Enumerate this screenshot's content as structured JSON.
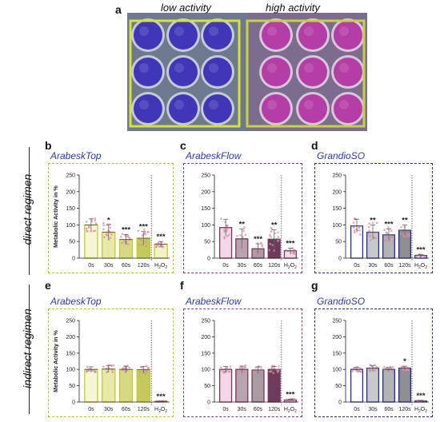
{
  "figure": {
    "panel_letters": [
      "a",
      "b",
      "c",
      "d",
      "e",
      "f",
      "g"
    ],
    "photo": {
      "label_low": "low activity",
      "label_high": "high activity",
      "low_well_color": "#3f37b8",
      "high_well_color": "#b43ea6",
      "low_box_color": "#d8e03a",
      "high_box_color": "#c8d040"
    },
    "regimens": [
      "direct regimen",
      "indirect regimen"
    ]
  },
  "chart_data": [
    {
      "panel": "b",
      "type": "bar",
      "title": "ArabeskTop",
      "categories": [
        "0s",
        "30s",
        "60s",
        "120s",
        "H2O2"
      ],
      "values": [
        100,
        78,
        56,
        60,
        42
      ],
      "errors": [
        18,
        22,
        15,
        20,
        8
      ],
      "significance": [
        "",
        "*",
        "***",
        "***",
        "***"
      ],
      "ylabel": "Metabolic Activity in %",
      "ylim": [
        0,
        250
      ],
      "yticks": [
        0,
        50,
        100,
        150,
        200,
        250
      ],
      "border_color": "#b7c01e",
      "bar_colors": [
        "#f7f6d2",
        "#e8e9a8",
        "#d6d982",
        "#c4c95b",
        "#f3f2c6"
      ],
      "bar_edge": "#c3cb2a"
    },
    {
      "panel": "c",
      "type": "bar",
      "title": "ArabeskFlow",
      "categories": [
        "0s",
        "30s",
        "60s",
        "120s",
        "H2O2"
      ],
      "values": [
        92,
        58,
        28,
        57,
        22
      ],
      "errors": [
        25,
        30,
        15,
        28,
        8
      ],
      "significance": [
        "",
        "**",
        "***",
        "**",
        "***"
      ],
      "ylabel": "",
      "ylim": [
        0,
        250
      ],
      "yticks": [
        0,
        50,
        100,
        150,
        200,
        250
      ],
      "border_color": "#8a3a73",
      "bar_colors": [
        "#f3d7e8",
        "#b7a4ae",
        "#a79aa1",
        "#6f3b5c",
        "#f3d7e8"
      ],
      "bar_edge": "#7d335f"
    },
    {
      "panel": "d",
      "type": "bar",
      "title": "GrandioSO",
      "categories": [
        "0s",
        "30s",
        "60s",
        "120s",
        "H2O2"
      ],
      "values": [
        97,
        78,
        70,
        84,
        8
      ],
      "errors": [
        20,
        22,
        18,
        16,
        3
      ],
      "significance": [
        "",
        "**",
        "***",
        "**",
        "***"
      ],
      "ylabel": "",
      "ylim": [
        0,
        250
      ],
      "yticks": [
        0,
        50,
        100,
        150,
        200,
        250
      ],
      "border_color": "#2a2f80",
      "bar_colors": [
        "#ffffff",
        "#c9c9c9",
        "#b3b3b3",
        "#8f8f8f",
        "#ffffff"
      ],
      "bar_edge": "#1f2a9a"
    },
    {
      "panel": "e",
      "type": "bar",
      "title": "ArabeskTop",
      "categories": [
        "0s",
        "30s",
        "60s",
        "120s",
        "H2O2"
      ],
      "values": [
        100,
        101,
        100,
        99,
        2
      ],
      "errors": [
        8,
        10,
        9,
        10,
        1
      ],
      "significance": [
        "",
        "",
        "",
        "",
        "***"
      ],
      "ylabel": "Metabolic Activity in %",
      "ylim": [
        0,
        250
      ],
      "yticks": [
        0,
        50,
        100,
        150,
        200,
        250
      ],
      "border_color": "#b7c01e",
      "bar_colors": [
        "#f7f6d2",
        "#e8e9a8",
        "#d6d982",
        "#c4c95b",
        "#f3f2c6"
      ],
      "bar_edge": "#c3cb2a"
    },
    {
      "panel": "f",
      "type": "bar",
      "title": "ArabeskFlow",
      "categories": [
        "0s",
        "30s",
        "60s",
        "120s",
        "H2O2"
      ],
      "values": [
        100,
        100,
        98,
        100,
        6
      ],
      "errors": [
        9,
        10,
        10,
        9,
        3
      ],
      "significance": [
        "",
        "",
        "",
        "",
        "***"
      ],
      "ylabel": "",
      "ylim": [
        0,
        250
      ],
      "yticks": [
        0,
        50,
        100,
        150,
        200,
        250
      ],
      "border_color": "#8a3a73",
      "bar_colors": [
        "#f3d7e8",
        "#b7a4ae",
        "#a79aa1",
        "#6f3b5c",
        "#f3d7e8"
      ],
      "bar_edge": "#7d335f"
    },
    {
      "panel": "g",
      "type": "bar",
      "title": "GrandioSO",
      "categories": [
        "0s",
        "30s",
        "60s",
        "120s",
        "H2O2"
      ],
      "values": [
        100,
        104,
        100,
        104,
        3
      ],
      "errors": [
        6,
        8,
        6,
        6,
        2
      ],
      "significance": [
        "",
        "",
        "",
        "*",
        "***"
      ],
      "ylabel": "",
      "ylim": [
        0,
        250
      ],
      "yticks": [
        0,
        50,
        100,
        150,
        200,
        250
      ],
      "border_color": "#2a2f80",
      "bar_colors": [
        "#ffffff",
        "#c9c9c9",
        "#b3b3b3",
        "#8f8f8f",
        "#ffffff"
      ],
      "bar_edge": "#1f2a9a"
    }
  ]
}
